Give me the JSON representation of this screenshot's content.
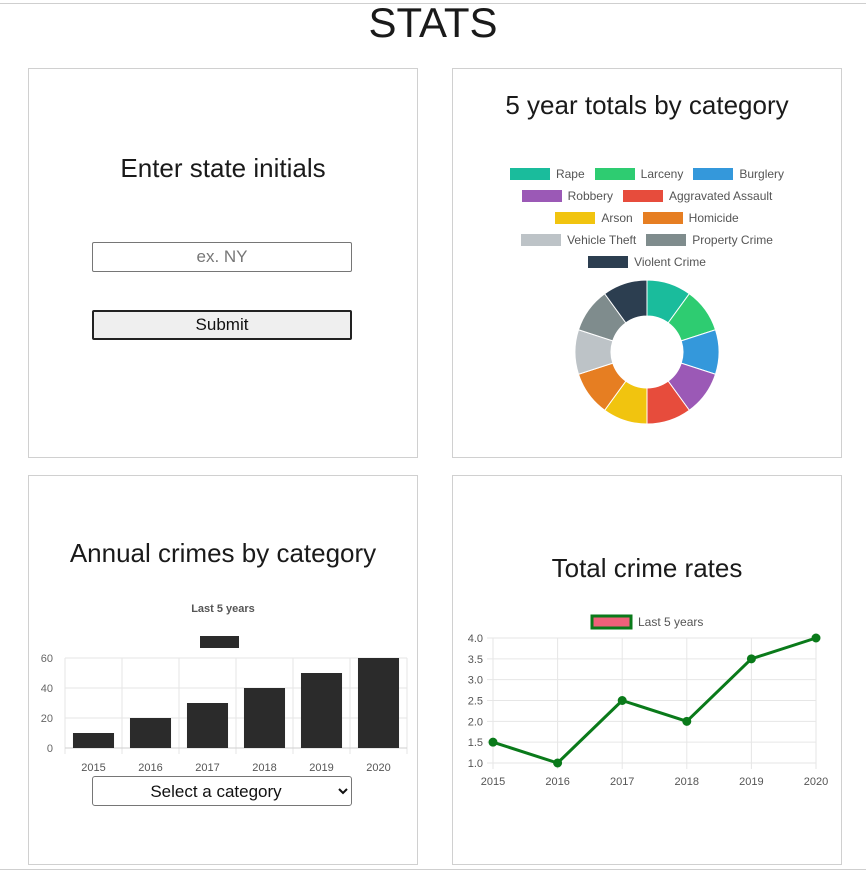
{
  "page": {
    "title": "STATS"
  },
  "state_panel": {
    "heading": "Enter state initials",
    "input_placeholder": "ex. NY",
    "input_value": "",
    "submit_label": "Submit"
  },
  "donut_panel": {
    "heading": "5 year totals by category",
    "chart_data": {
      "type": "pie",
      "variant": "doughnut",
      "legend_position": "top",
      "categories": [
        "Rape",
        "Larceny",
        "Burglery",
        "Robbery",
        "Aggravated Assault",
        "Arson",
        "Homicide",
        "Vehicle Theft",
        "Property Crime",
        "Violent Crime"
      ],
      "values": [
        1,
        1,
        1,
        1,
        1,
        1,
        1,
        1,
        1,
        1
      ],
      "colors": [
        "#1abc9c",
        "#2ecc71",
        "#3498db",
        "#9b59b6",
        "#e74c3c",
        "#f1c40f",
        "#e67e22",
        "#bdc3c7",
        "#7f8c8d",
        "#2c3e50"
      ]
    }
  },
  "bar_panel": {
    "heading": "Annual crimes by category",
    "select_label": "Select a category",
    "chart_data": {
      "type": "bar",
      "title": "Last 5 years",
      "categories": [
        "2015",
        "2016",
        "2017",
        "2018",
        "2019",
        "2020"
      ],
      "values": [
        10,
        20,
        30,
        40,
        50,
        60
      ],
      "ylim": [
        0,
        60
      ],
      "yticks": [
        "0",
        "20",
        "40",
        "60"
      ],
      "grid": true,
      "legend_position": "top",
      "bar_color": "#2b2b2b"
    }
  },
  "line_panel": {
    "heading": "Total crime rates",
    "chart_data": {
      "type": "line",
      "x": [
        "2015",
        "2016",
        "2017",
        "2018",
        "2019",
        "2020"
      ],
      "series": [
        {
          "name": "Last 5 years",
          "values": [
            1.5,
            1.0,
            2.5,
            2.0,
            3.5,
            4.0
          ]
        }
      ],
      "ylim": [
        1.0,
        4.0
      ],
      "yticks": [
        "1.0",
        "1.5",
        "2.0",
        "2.5",
        "3.0",
        "3.5",
        "4.0"
      ],
      "grid": true,
      "legend_position": "top",
      "line_color": "#0a7a1a",
      "legend_fill": "#f0607a"
    }
  }
}
